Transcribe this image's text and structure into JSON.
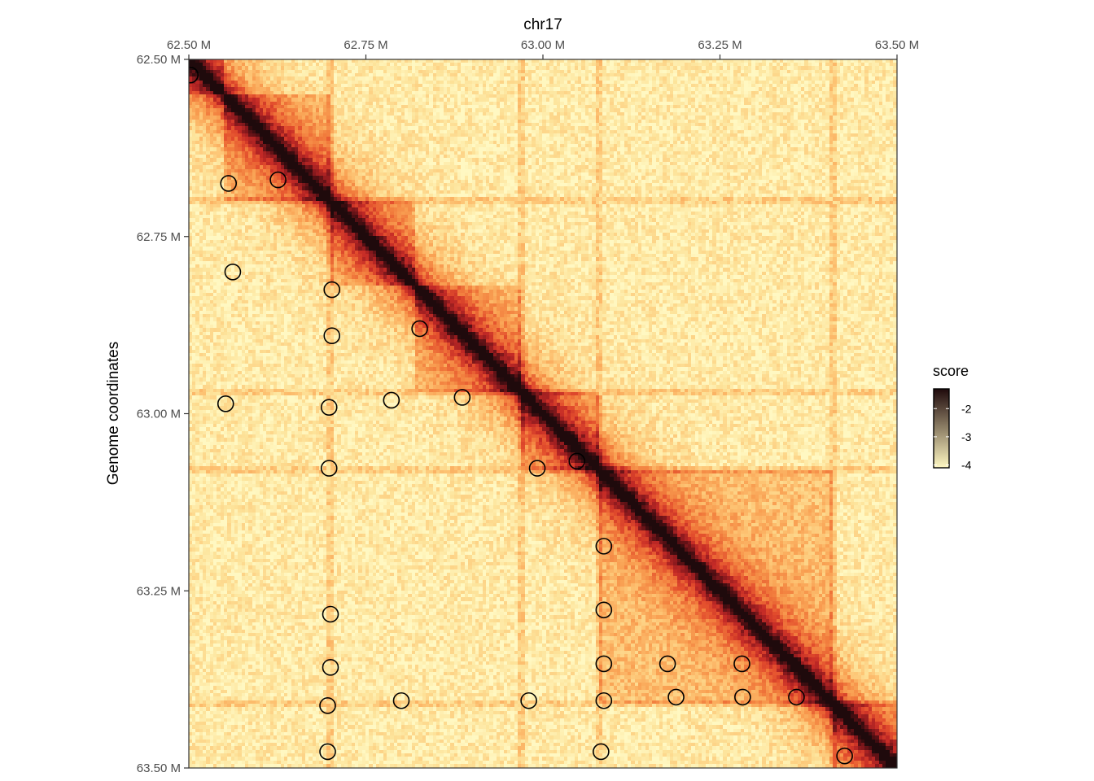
{
  "chart_data": {
    "type": "heatmap",
    "title": "chr17",
    "xlabel": "",
    "ylabel": "Genome coordinates",
    "xlim": [
      62.5,
      63.5
    ],
    "ylim": [
      62.5,
      63.5
    ],
    "x_ticks": [
      62.5,
      62.75,
      63.0,
      63.25,
      63.5
    ],
    "x_tick_labels": [
      "62.50 M",
      "62.75 M",
      "63.00 M",
      "63.25 M",
      "63.50 M"
    ],
    "y_ticks": [
      62.5,
      62.75,
      63.0,
      63.25,
      63.5
    ],
    "y_tick_labels": [
      "62.50 M",
      "62.75 M",
      "63.00 M",
      "63.25 M",
      "63.50 M"
    ],
    "x_axis_position": "top",
    "grid": false,
    "bins": 200,
    "colorbar": {
      "title": "score",
      "range": [
        -4.1,
        -1.3
      ],
      "ticks": [
        -2,
        -3,
        -4
      ],
      "tick_labels": [
        "-2",
        "-3",
        "-4"
      ],
      "placement": "right",
      "colors": [
        "#fff8c2",
        "#fde39a",
        "#fdc474",
        "#f9a153",
        "#f17b3c",
        "#e34e2d",
        "#c42a26",
        "#8e1a1e",
        "#4a0e12",
        "#1f0a0c"
      ]
    },
    "domains_mb": [
      [
        62.5,
        62.55
      ],
      [
        62.55,
        62.7
      ],
      [
        62.7,
        62.82
      ],
      [
        62.82,
        62.97
      ],
      [
        62.97,
        63.08
      ],
      [
        63.08,
        63.41
      ],
      [
        63.41,
        63.5
      ]
    ],
    "stripe_positions_mb": [
      62.7,
      62.97,
      63.08,
      63.41
    ],
    "loops": [
      {
        "x": 62.502,
        "y": 62.522
      },
      {
        "x": 62.556,
        "y": 62.675
      },
      {
        "x": 62.626,
        "y": 62.67
      },
      {
        "x": 62.562,
        "y": 62.8
      },
      {
        "x": 62.702,
        "y": 62.825
      },
      {
        "x": 62.702,
        "y": 62.89
      },
      {
        "x": 62.826,
        "y": 62.88
      },
      {
        "x": 62.552,
        "y": 62.986
      },
      {
        "x": 62.698,
        "y": 62.991
      },
      {
        "x": 62.786,
        "y": 62.981
      },
      {
        "x": 62.886,
        "y": 62.977
      },
      {
        "x": 62.698,
        "y": 63.077
      },
      {
        "x": 62.992,
        "y": 63.077
      },
      {
        "x": 63.048,
        "y": 63.067
      },
      {
        "x": 63.086,
        "y": 63.187
      },
      {
        "x": 63.086,
        "y": 63.277
      },
      {
        "x": 62.7,
        "y": 63.283
      },
      {
        "x": 62.7,
        "y": 63.358
      },
      {
        "x": 63.086,
        "y": 63.353
      },
      {
        "x": 63.176,
        "y": 63.353
      },
      {
        "x": 63.281,
        "y": 63.353
      },
      {
        "x": 62.696,
        "y": 63.412
      },
      {
        "x": 62.8,
        "y": 63.405
      },
      {
        "x": 62.98,
        "y": 63.405
      },
      {
        "x": 63.086,
        "y": 63.405
      },
      {
        "x": 63.188,
        "y": 63.4
      },
      {
        "x": 63.282,
        "y": 63.4
      },
      {
        "x": 63.358,
        "y": 63.4
      },
      {
        "x": 62.696,
        "y": 63.477
      },
      {
        "x": 63.082,
        "y": 63.477
      },
      {
        "x": 63.426,
        "y": 63.483
      }
    ]
  }
}
